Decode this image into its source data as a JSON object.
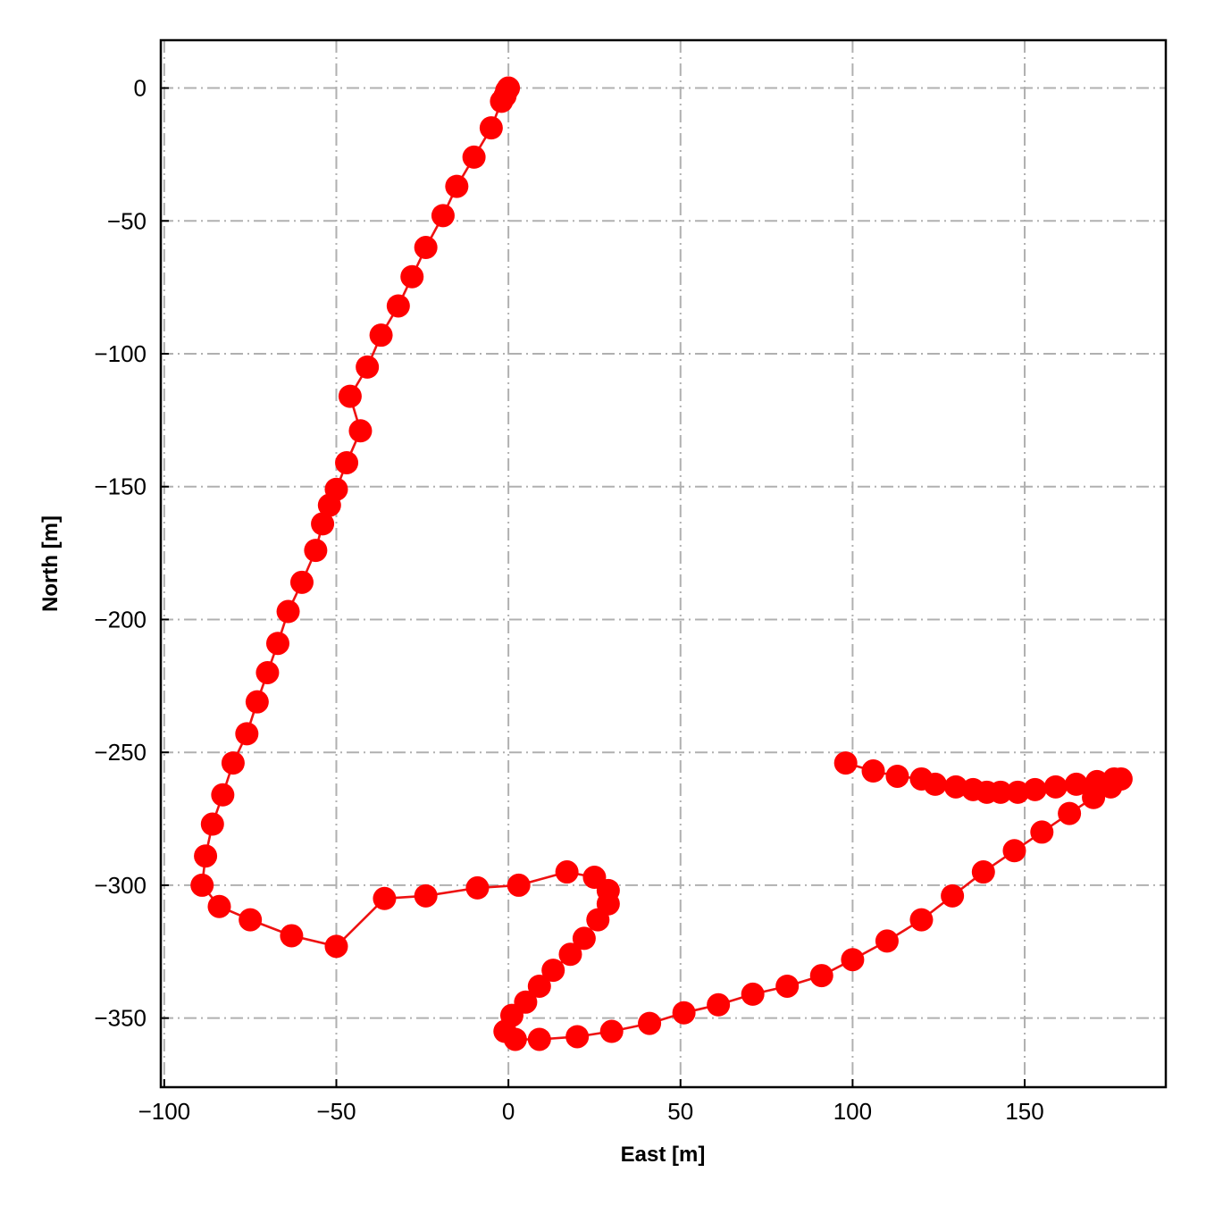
{
  "chart_data": {
    "type": "line",
    "title": "",
    "xlabel": "East [m]",
    "ylabel": "North [m]",
    "xlim": [
      -101,
      191
    ],
    "ylim": [
      -376,
      18
    ],
    "xticks": [
      -100,
      -50,
      0,
      50,
      100,
      150
    ],
    "yticks": [
      0,
      -50,
      -100,
      -150,
      -200,
      -250,
      -300,
      -350
    ],
    "xtick_labels": [
      "−100",
      "−50",
      "0",
      "50",
      "100",
      "150"
    ],
    "ytick_labels": [
      "0",
      "−50",
      "−100",
      "−150",
      "−200",
      "−250",
      "−300",
      "−350"
    ],
    "grid": true,
    "legend": "none",
    "series": [
      {
        "color": "#ff0000",
        "marker": "circle",
        "points": [
          [
            0,
            0
          ],
          [
            -0.5,
            -1
          ],
          [
            -1,
            -3
          ],
          [
            -2,
            -5
          ],
          [
            -5,
            -15
          ],
          [
            -10,
            -26
          ],
          [
            -15,
            -37
          ],
          [
            -19,
            -48
          ],
          [
            -24,
            -60
          ],
          [
            -28,
            -71
          ],
          [
            -32,
            -82
          ],
          [
            -37,
            -93
          ],
          [
            -41,
            -105
          ],
          [
            -46,
            -116
          ],
          [
            -43,
            -129
          ],
          [
            -47,
            -141
          ],
          [
            -50,
            -151
          ],
          [
            -52,
            -157
          ],
          [
            -54,
            -164
          ],
          [
            -56,
            -174
          ],
          [
            -60,
            -186
          ],
          [
            -64,
            -197
          ],
          [
            -67,
            -209
          ],
          [
            -70,
            -220
          ],
          [
            -73,
            -231
          ],
          [
            -76,
            -243
          ],
          [
            -80,
            -254
          ],
          [
            -83,
            -266
          ],
          [
            -86,
            -277
          ],
          [
            -88,
            -289
          ],
          [
            -89,
            -300
          ],
          [
            -84,
            -308
          ],
          [
            -75,
            -313
          ],
          [
            -63,
            -319
          ],
          [
            -50,
            -323
          ],
          [
            -36,
            -305
          ],
          [
            -24,
            -304
          ],
          [
            -9,
            -301
          ],
          [
            3,
            -300
          ],
          [
            17,
            -295
          ],
          [
            25,
            -297
          ],
          [
            29,
            -302
          ],
          [
            29,
            -307
          ],
          [
            26,
            -313
          ],
          [
            22,
            -320
          ],
          [
            18,
            -326
          ],
          [
            13,
            -332
          ],
          [
            9,
            -338
          ],
          [
            5,
            -344
          ],
          [
            1,
            -349
          ],
          [
            -1,
            -355
          ],
          [
            2,
            -358
          ],
          [
            9,
            -358
          ],
          [
            20,
            -357
          ],
          [
            30,
            -355
          ],
          [
            41,
            -352
          ],
          [
            51,
            -348
          ],
          [
            61,
            -345
          ],
          [
            71,
            -341
          ],
          [
            81,
            -338
          ],
          [
            91,
            -334
          ],
          [
            100,
            -328
          ],
          [
            110,
            -321
          ],
          [
            120,
            -313
          ],
          [
            129,
            -304
          ],
          [
            138,
            -295
          ],
          [
            147,
            -287
          ],
          [
            155,
            -280
          ],
          [
            163,
            -273
          ],
          [
            170,
            -267
          ],
          [
            175,
            -263
          ],
          [
            178,
            -260
          ],
          [
            176,
            -260
          ],
          [
            171,
            -261
          ],
          [
            165,
            -262
          ],
          [
            159,
            -263
          ],
          [
            153,
            -264
          ],
          [
            148,
            -265
          ],
          [
            143,
            -265
          ],
          [
            139,
            -265
          ],
          [
            135,
            -264
          ],
          [
            130,
            -263
          ],
          [
            124,
            -262
          ],
          [
            120,
            -260
          ],
          [
            113,
            -259
          ],
          [
            106,
            -257
          ],
          [
            98,
            -254
          ]
        ]
      }
    ]
  }
}
